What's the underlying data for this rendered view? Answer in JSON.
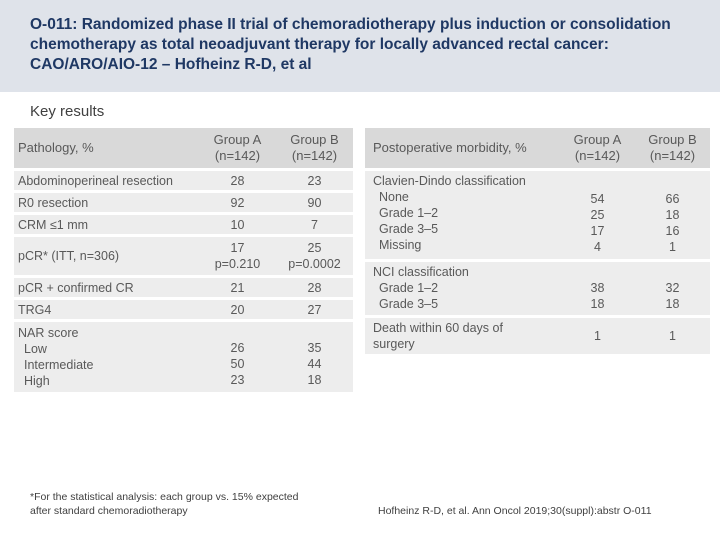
{
  "header": {
    "title": "O-011: Randomized phase II trial of chemoradiotherapy plus induction or consolidation chemotherapy as total neoadjuvant therapy for locally advanced rectal cancer: CAO/ARO/AIO-12 – Hofheinz R-D, et al"
  },
  "subtitle": "Key results",
  "left_table": {
    "header": {
      "label": "Pathology, %",
      "col_a": [
        "Group A",
        "(n=142)"
      ],
      "col_b": [
        "Group B",
        "(n=142)"
      ]
    },
    "rows": [
      {
        "label": [
          "Abdominoperineal resection"
        ],
        "a": [
          "28"
        ],
        "b": [
          "23"
        ]
      },
      {
        "label": [
          "R0 resection"
        ],
        "a": [
          "92"
        ],
        "b": [
          "90"
        ]
      },
      {
        "label": [
          "CRM ≤1 mm"
        ],
        "a": [
          "10"
        ],
        "b": [
          "7"
        ]
      },
      {
        "label": [
          "pCR* (ITT, n=306)"
        ],
        "a": [
          "17",
          "p=0.210"
        ],
        "b": [
          "25",
          "p=0.0002"
        ]
      },
      {
        "label": [
          "pCR + confirmed CR"
        ],
        "a": [
          "21"
        ],
        "b": [
          "28"
        ]
      },
      {
        "label": [
          "TRG4"
        ],
        "a": [
          "20"
        ],
        "b": [
          "27"
        ]
      },
      {
        "label": [
          "NAR score",
          "Low",
          "Intermediate",
          "High"
        ],
        "a": [
          "26",
          "50",
          "23"
        ],
        "b": [
          "35",
          "44",
          "18"
        ]
      }
    ]
  },
  "right_table": {
    "header": {
      "label": "Postoperative morbidity, %",
      "col_a": [
        "Group A",
        "(n=142)"
      ],
      "col_b": [
        "Group B",
        "(n=142)"
      ]
    },
    "rows": [
      {
        "label": [
          "Clavien-Dindo classification",
          "None",
          "Grade 1–2",
          "Grade 3–5",
          "Missing"
        ],
        "a": [
          "54",
          "25",
          "17",
          "4"
        ],
        "b": [
          "66",
          "18",
          "16",
          "1"
        ]
      },
      {
        "label": [
          "NCI classification",
          "Grade 1–2",
          "Grade 3–5"
        ],
        "a": [
          "38",
          "18"
        ],
        "b": [
          "32",
          "18"
        ]
      },
      {
        "label": [
          "Death within 60 days of",
          "surgery"
        ],
        "a": [
          "1"
        ],
        "b": [
          "1"
        ]
      }
    ]
  },
  "footnote": [
    "*For the statistical analysis: each group vs. 15% expected",
    "after standard chemoradiotherapy"
  ],
  "reference": "Hofheinz R-D, et al. Ann Oncol 2019;30(suppl):abstr O-011"
}
